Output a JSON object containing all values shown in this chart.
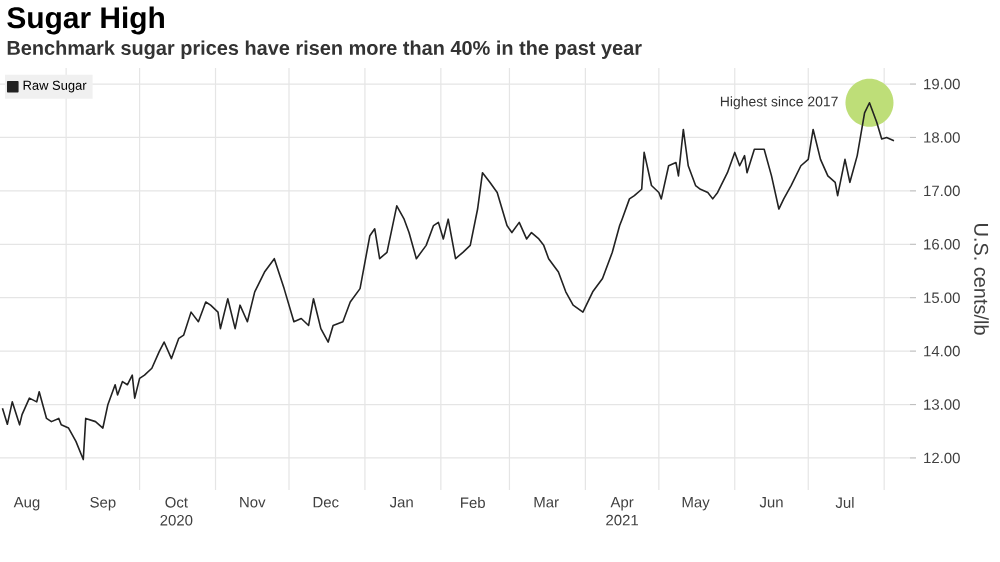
{
  "chart_data": {
    "type": "line",
    "title": "Sugar High",
    "subtitle": "Benchmark sugar prices have risen more than 40% in the past year",
    "ylabel": "U.S. cents/lb",
    "x": [
      "2020-08-06",
      "2020-08-08",
      "2020-08-10",
      "2020-08-13",
      "2020-08-14",
      "2020-08-17",
      "2020-08-20",
      "2020-08-21",
      "2020-08-24",
      "2020-08-26",
      "2020-08-29",
      "2020-08-30",
      "2020-09-02",
      "2020-09-05",
      "2020-09-08",
      "2020-09-09",
      "2020-09-13",
      "2020-09-16",
      "2020-09-18",
      "2020-09-21",
      "2020-09-22",
      "2020-09-24",
      "2020-09-26",
      "2020-09-28",
      "2020-09-29",
      "2020-10-01",
      "2020-10-03",
      "2020-10-06",
      "2020-10-09",
      "2020-10-11",
      "2020-10-14",
      "2020-10-17",
      "2020-10-19",
      "2020-10-22",
      "2020-10-25",
      "2020-10-28",
      "2020-10-30",
      "2020-11-02",
      "2020-11-03",
      "2020-11-06",
      "2020-11-09",
      "2020-11-11",
      "2020-11-14",
      "2020-11-17",
      "2020-11-21",
      "2020-11-25",
      "2020-11-29",
      "2020-12-03",
      "2020-12-06",
      "2020-12-09",
      "2020-12-11",
      "2020-12-14",
      "2020-12-17",
      "2020-12-19",
      "2020-12-23",
      "2020-12-26",
      "2020-12-30",
      "2021-01-03",
      "2021-01-05",
      "2021-01-07",
      "2021-01-10",
      "2021-01-14",
      "2021-01-17",
      "2021-01-19",
      "2021-01-22",
      "2021-01-26",
      "2021-01-29",
      "2021-01-31",
      "2021-02-02",
      "2021-02-04",
      "2021-02-07",
      "2021-02-10",
      "2021-02-13",
      "2021-02-16",
      "2021-02-18",
      "2021-02-21",
      "2021-02-24",
      "2021-02-28",
      "2021-03-02",
      "2021-03-05",
      "2021-03-08",
      "2021-03-10",
      "2021-03-13",
      "2021-03-15",
      "2021-03-17",
      "2021-03-21",
      "2021-03-24",
      "2021-03-27",
      "2021-03-31",
      "2021-04-04",
      "2021-04-08",
      "2021-04-12",
      "2021-04-15",
      "2021-04-16",
      "2021-04-19",
      "2021-04-21",
      "2021-04-24",
      "2021-04-25",
      "2021-04-28",
      "2021-05-01",
      "2021-05-02",
      "2021-05-05",
      "2021-05-08",
      "2021-05-09",
      "2021-05-11",
      "2021-05-13",
      "2021-05-16",
      "2021-05-18",
      "2021-05-21",
      "2021-05-23",
      "2021-05-25",
      "2021-05-29",
      "2021-06-01",
      "2021-06-03",
      "2021-06-05",
      "2021-06-06",
      "2021-06-09",
      "2021-06-13",
      "2021-06-16",
      "2021-06-19",
      "2021-06-21",
      "2021-06-24",
      "2021-06-28",
      "2021-07-01",
      "2021-07-03",
      "2021-07-06",
      "2021-07-09",
      "2021-07-12",
      "2021-07-13",
      "2021-07-16",
      "2021-07-18",
      "2021-07-21",
      "2021-07-24",
      "2021-07-26",
      "2021-07-29",
      "2021-07-31",
      "2021-08-02",
      "2021-08-05"
    ],
    "series": [
      {
        "name": "Raw Sugar",
        "color": "#222222",
        "values": [
          12.93,
          12.63,
          13.05,
          12.62,
          12.81,
          13.12,
          13.05,
          13.24,
          12.74,
          12.68,
          12.74,
          12.62,
          12.56,
          12.31,
          11.97,
          12.74,
          12.68,
          12.56,
          12.99,
          13.37,
          13.18,
          13.43,
          13.37,
          13.55,
          13.12,
          13.49,
          13.55,
          13.68,
          13.99,
          14.17,
          13.86,
          14.24,
          14.3,
          14.73,
          14.55,
          14.92,
          14.86,
          14.73,
          14.42,
          14.98,
          14.42,
          14.86,
          14.55,
          15.11,
          15.48,
          15.73,
          15.17,
          14.55,
          14.61,
          14.48,
          14.98,
          14.42,
          14.17,
          14.48,
          14.55,
          14.92,
          15.17,
          16.16,
          16.29,
          15.73,
          15.85,
          16.72,
          16.47,
          16.22,
          15.73,
          15.98,
          16.35,
          16.41,
          16.1,
          16.47,
          15.73,
          15.85,
          15.98,
          16.66,
          17.34,
          17.16,
          16.97,
          16.35,
          16.22,
          16.41,
          16.1,
          16.22,
          16.1,
          15.98,
          15.73,
          15.48,
          15.11,
          14.86,
          14.73,
          15.11,
          15.36,
          15.85,
          16.35,
          16.47,
          16.85,
          16.91,
          17.03,
          17.72,
          17.1,
          16.97,
          16.85,
          17.47,
          17.53,
          17.28,
          18.15,
          17.47,
          17.1,
          17.03,
          16.97,
          16.85,
          16.97,
          17.34,
          17.72,
          17.47,
          17.66,
          17.34,
          17.78,
          17.78,
          17.28,
          16.66,
          16.85,
          17.1,
          17.47,
          17.59,
          18.15,
          17.59,
          17.28,
          17.16,
          16.91,
          17.59,
          17.16,
          17.66,
          18.46,
          18.65,
          18.28,
          17.97,
          18.0,
          17.94
        ]
      }
    ],
    "xlim": [
      "2020-08-05",
      "2021-08-14"
    ],
    "xticks": [
      {
        "value": "2020-08-16",
        "label": "Aug"
      },
      {
        "value": "2020-09-01",
        "label": null
      },
      {
        "value": "2020-09-16",
        "label": "Sep"
      },
      {
        "value": "2020-10-01",
        "label": null
      },
      {
        "value": "2020-10-16",
        "label": "Oct 2020"
      },
      {
        "value": "2020-11-01",
        "label": null
      },
      {
        "value": "2020-11-16",
        "label": "Nov"
      },
      {
        "value": "2020-12-01",
        "label": null
      },
      {
        "value": "2020-12-16",
        "label": "Dec"
      },
      {
        "value": "2021-01-01",
        "label": null
      },
      {
        "value": "2021-01-16",
        "label": "Jan"
      },
      {
        "value": "2021-02-01",
        "label": null
      },
      {
        "value": "2021-02-14",
        "label": "Feb"
      },
      {
        "value": "2021-03-01",
        "label": null
      },
      {
        "value": "2021-03-16",
        "label": "Mar"
      },
      {
        "value": "2021-04-01",
        "label": null
      },
      {
        "value": "2021-04-16",
        "label": "Apr 2021"
      },
      {
        "value": "2021-05-01",
        "label": null
      },
      {
        "value": "2021-05-16",
        "label": "May"
      },
      {
        "value": "2021-06-01",
        "label": null
      },
      {
        "value": "2021-06-16",
        "label": "Jun"
      },
      {
        "value": "2021-07-01",
        "label": null
      },
      {
        "value": "2021-07-16",
        "label": "Jul"
      },
      {
        "value": "2021-08-01",
        "label": null
      }
    ],
    "ylim": [
      11.4,
      19.3
    ],
    "yticks": [
      {
        "value": 12,
        "label": "12.00"
      },
      {
        "value": 13,
        "label": "13.00"
      },
      {
        "value": 14,
        "label": "14.00"
      },
      {
        "value": 15,
        "label": "15.00"
      },
      {
        "value": 16,
        "label": "16.00"
      },
      {
        "value": 17,
        "label": "17.00"
      },
      {
        "value": 18,
        "label": "18.00"
      },
      {
        "value": 19,
        "label": "19.00"
      }
    ],
    "annotations": [
      {
        "text": "Highest since 2017",
        "x": "2021-07-26",
        "y": 18.65
      }
    ],
    "grid": true,
    "legend": "top left"
  }
}
